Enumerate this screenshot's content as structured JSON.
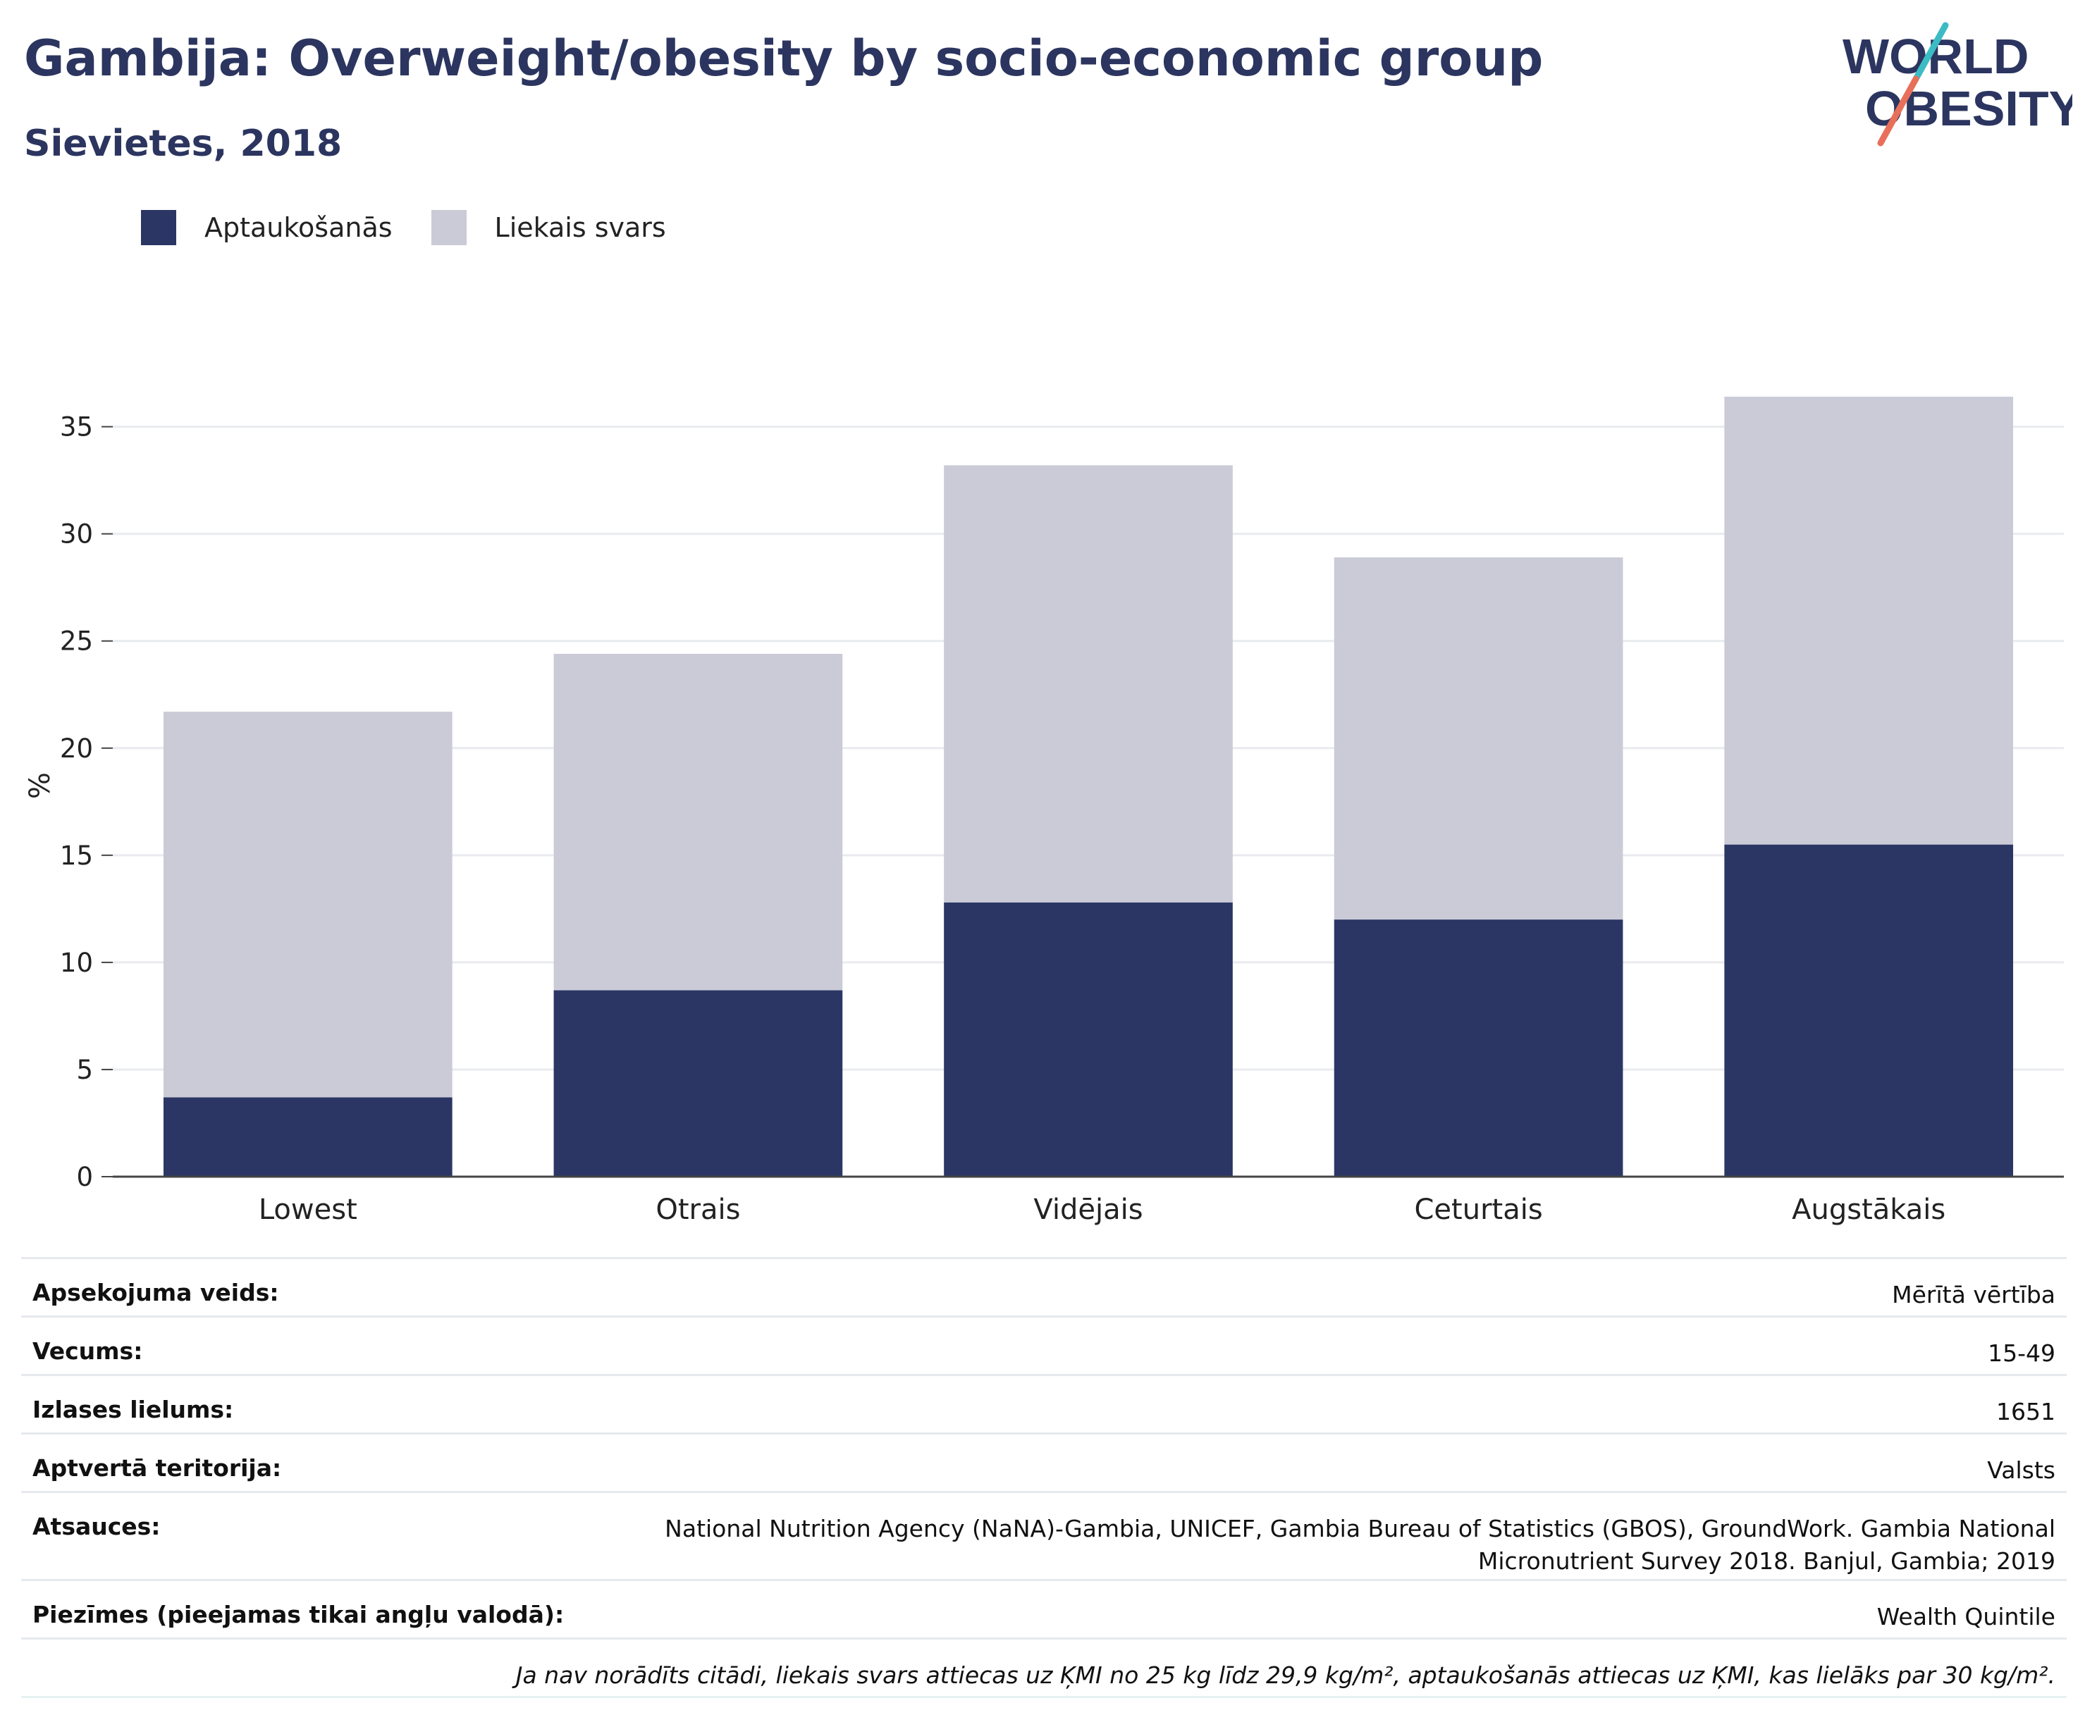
{
  "title": "Gambija: Overweight/obesity by socio-economic group",
  "subtitle": "Sievietes, 2018",
  "logo": {
    "line1": "WORLD",
    "line2": "OBESITY"
  },
  "colors": {
    "obesity": "#2b3664",
    "overweight": "#cacbd7",
    "title": "#2b355f",
    "grid": "#e9ebef",
    "logo_teal": "#3bbcc4",
    "logo_coral": "#e8705a"
  },
  "legend": [
    {
      "label": "Aptaukošanās",
      "color": "#2b3664"
    },
    {
      "label": "Liekais svars",
      "color": "#cacbd7"
    }
  ],
  "chart_data": {
    "type": "bar",
    "stacked": true,
    "categories": [
      "Lowest",
      "Otrais",
      "Vidējais",
      "Ceturtais",
      "Augstākais"
    ],
    "series": [
      {
        "name": "Aptaukošanās",
        "values": [
          3.7,
          8.7,
          12.8,
          12.0,
          15.5
        ]
      },
      {
        "name": "Liekais svars",
        "values": [
          18.0,
          15.7,
          20.4,
          16.9,
          20.9
        ]
      }
    ],
    "ylabel": "%",
    "ylim": [
      0,
      36.5
    ],
    "yticks": [
      0,
      5,
      10,
      15,
      20,
      25,
      30,
      35
    ],
    "grid": true,
    "legend_position": "top-left"
  },
  "info": {
    "rows": [
      {
        "label": "Apsekojuma veids:",
        "value": "Mērītā vērtība"
      },
      {
        "label": "Vecums:",
        "value": "15-49"
      },
      {
        "label": "Izlases lielums:",
        "value": "1651"
      },
      {
        "label": "Aptvertā teritorija:",
        "value": "Valsts"
      },
      {
        "label": "Atsauces:",
        "value": "National Nutrition Agency (NaNA)-Gambia, UNICEF, Gambia Bureau of Statistics (GBOS), GroundWork. Gambia National Micronutrient Survey 2018. Banjul, Gambia; 2019"
      },
      {
        "label": "Piezīmes (pieejamas tikai angļu valodā):",
        "value": "Wealth Quintile"
      }
    ],
    "note": "Ja nav norādīts citādi, liekais svars attiecas uz ĶMI no 25 kg līdz 29,9 kg/m², aptaukošanās attiecas uz ĶMI, kas lielāks par 30 kg/m²."
  }
}
